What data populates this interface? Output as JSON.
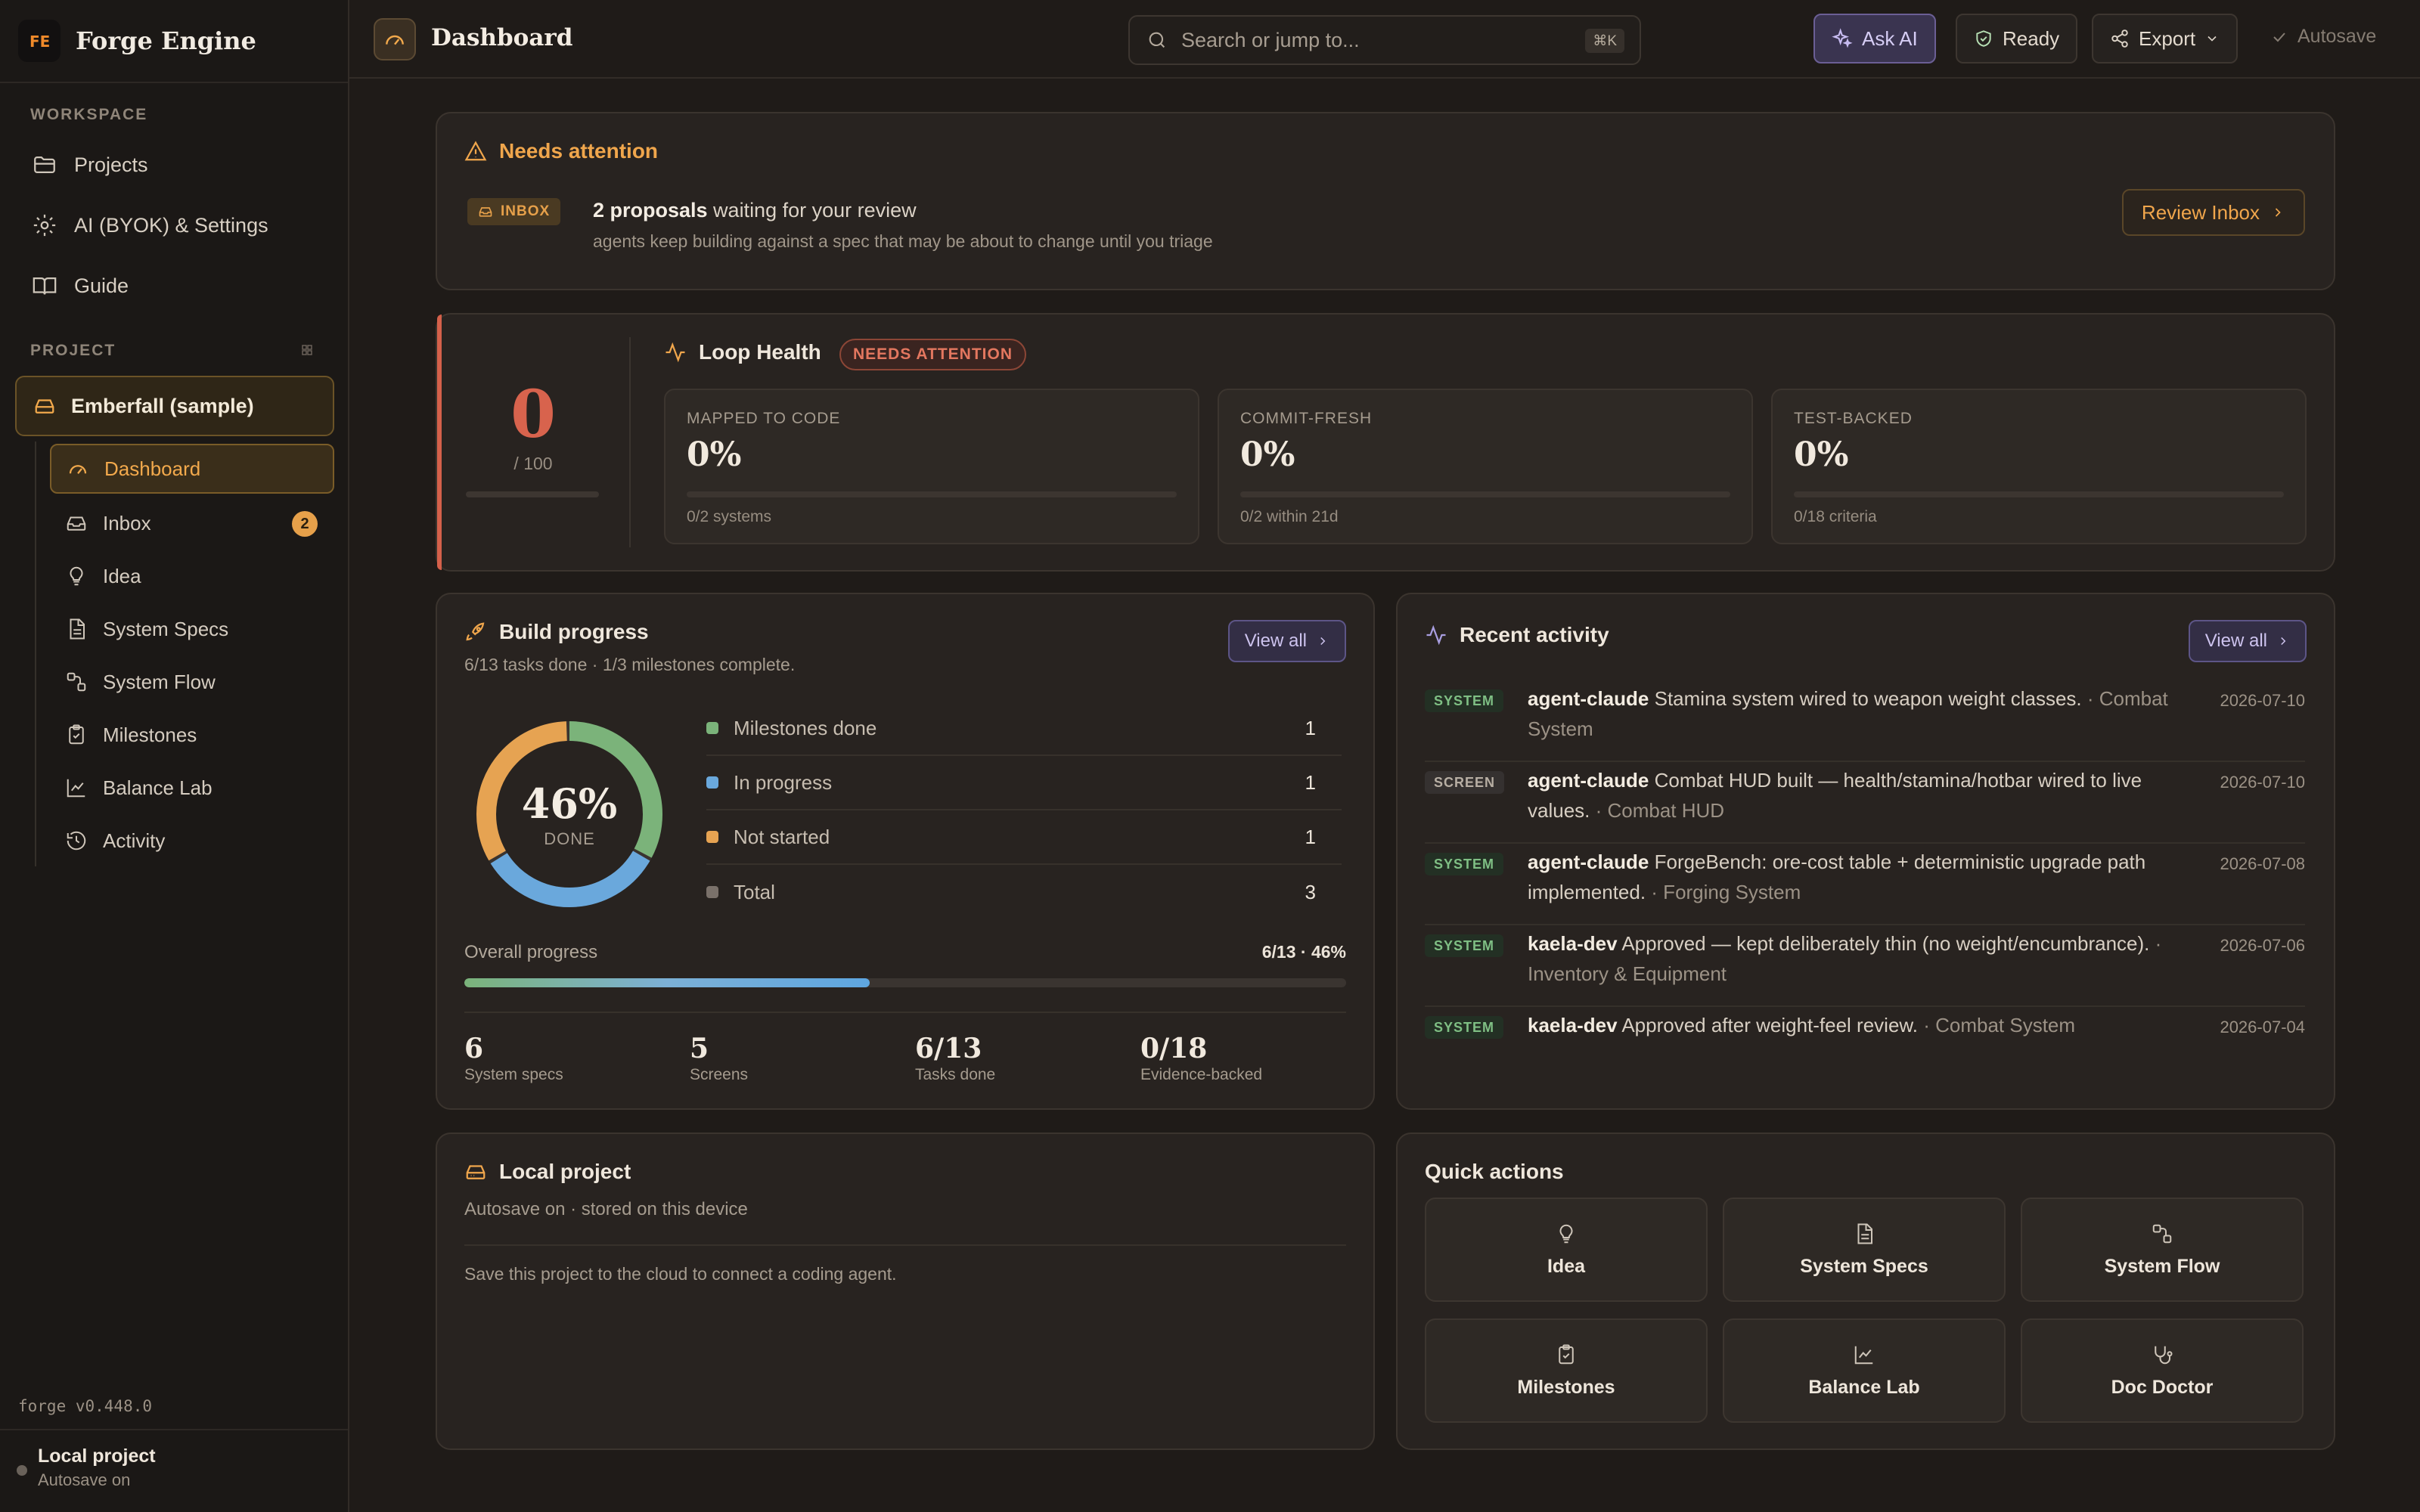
{
  "brand": {
    "name": "Forge Engine",
    "logo": "FE"
  },
  "sidebar": {
    "workspace_label": "WORKSPACE",
    "workspace_items": [
      {
        "label": "Projects",
        "icon": "folder-icon"
      },
      {
        "label": "AI (BYOK) & Settings",
        "icon": "gear-icon"
      },
      {
        "label": "Guide",
        "icon": "book-icon"
      }
    ],
    "project_label": "PROJECT",
    "project_name": "Emberfall (sample)",
    "project_items": [
      {
        "label": "Dashboard",
        "icon": "gauge-icon",
        "active": true
      },
      {
        "label": "Inbox",
        "icon": "inbox-icon",
        "badge": "2"
      },
      {
        "label": "Idea",
        "icon": "lightbulb-icon"
      },
      {
        "label": "System Specs",
        "icon": "document-icon"
      },
      {
        "label": "System Flow",
        "icon": "flow-icon"
      },
      {
        "label": "Milestones",
        "icon": "clipboard-check-icon"
      },
      {
        "label": "Balance Lab",
        "icon": "line-chart-icon"
      },
      {
        "label": "Activity",
        "icon": "history-icon"
      }
    ],
    "version": "forge v0.448.0",
    "status_title": "Local project",
    "status_sub": "Autosave on"
  },
  "topbar": {
    "title": "Dashboard",
    "search_placeholder": "Search or jump to...",
    "search_shortcut": "⌘K",
    "ask_ai": "Ask AI",
    "ready": "Ready",
    "export": "Export",
    "autosave": "Autosave"
  },
  "attention": {
    "title": "Needs attention",
    "tag": "INBOX",
    "count_text": "2 proposals",
    "main_text": " waiting for your review",
    "sub_text": "agents keep building against a spec that may be about to change until you triage",
    "button": "Review Inbox"
  },
  "loop_health": {
    "score": "0",
    "score_of": "/ 100",
    "score_fraction": 0,
    "title": "Loop Health",
    "badge": "NEEDS ATTENTION",
    "metrics": [
      {
        "label": "MAPPED TO CODE",
        "value": "0%",
        "fraction": 0,
        "detail": "0/2 systems"
      },
      {
        "label": "COMMIT-FRESH",
        "value": "0%",
        "fraction": 0,
        "detail": "0/2 within 21d"
      },
      {
        "label": "TEST-BACKED",
        "value": "0%",
        "fraction": 0,
        "detail": "0/18 criteria"
      }
    ]
  },
  "build_progress": {
    "title": "Build progress",
    "subtitle": "6/13 tasks done · 1/3 milestones complete.",
    "view_all": "View all",
    "donut_pct": "46%",
    "donut_label": "DONE",
    "donut_segments": [
      {
        "name": "Milestones done",
        "value": 1,
        "color": "#7bb37a"
      },
      {
        "name": "In progress",
        "value": 1,
        "color": "#6aa8dc"
      },
      {
        "name": "Not started",
        "value": 1,
        "color": "#e6a352"
      }
    ],
    "legend": [
      {
        "label": "Milestones done",
        "value": "1",
        "color": "#7bb37a"
      },
      {
        "label": "In progress",
        "value": "1",
        "color": "#6aa8dc"
      },
      {
        "label": "Not started",
        "value": "1",
        "color": "#e6a352"
      },
      {
        "label": "Total",
        "value": "3",
        "color": "#7a716a"
      }
    ],
    "overall_label": "Overall progress",
    "overall_value": "6/13 · 46%",
    "overall_fraction": 0.46,
    "stats": [
      {
        "num": "6",
        "label": "System specs"
      },
      {
        "num": "5",
        "label": "Screens"
      },
      {
        "num": "6/13",
        "label": "Tasks done"
      },
      {
        "num": "0/18",
        "label": "Evidence-backed"
      }
    ]
  },
  "activity": {
    "title": "Recent activity",
    "view_all": "View all",
    "items": [
      {
        "tag": "SYSTEM",
        "author": "agent-claude",
        "text": " Stamina system wired to weapon weight classes.",
        "system": " · Combat System",
        "date": "2026-07-10"
      },
      {
        "tag": "SCREEN",
        "author": "agent-claude",
        "text": " Combat HUD built — health/stamina/hotbar wired to live values.",
        "system": " · Combat HUD",
        "date": "2026-07-10"
      },
      {
        "tag": "SYSTEM",
        "author": "agent-claude",
        "text": " ForgeBench: ore-cost table + deterministic upgrade path implemented.",
        "system": " · Forging System",
        "date": "2026-07-08"
      },
      {
        "tag": "SYSTEM",
        "author": "kaela-dev",
        "text": " Approved — kept deliberately thin (no weight/encumbrance).",
        "system": " · Inventory & Equipment",
        "date": "2026-07-06"
      },
      {
        "tag": "SYSTEM",
        "author": "kaela-dev",
        "text": " Approved after weight-feel review.",
        "system": " · Combat System",
        "date": "2026-07-04"
      }
    ]
  },
  "local_project": {
    "title": "Local project",
    "subtitle": "Autosave on · stored on this device",
    "note": "Save this project to the cloud to connect a coding agent."
  },
  "quick_actions": {
    "title": "Quick actions",
    "items": [
      {
        "label": "Idea",
        "icon": "lightbulb-icon"
      },
      {
        "label": "System Specs",
        "icon": "document-icon"
      },
      {
        "label": "System Flow",
        "icon": "flow-icon"
      },
      {
        "label": "Milestones",
        "icon": "clipboard-check-icon"
      },
      {
        "label": "Balance Lab",
        "icon": "line-chart-icon"
      },
      {
        "label": "Doc Doctor",
        "icon": "stethoscope-icon"
      }
    ]
  }
}
